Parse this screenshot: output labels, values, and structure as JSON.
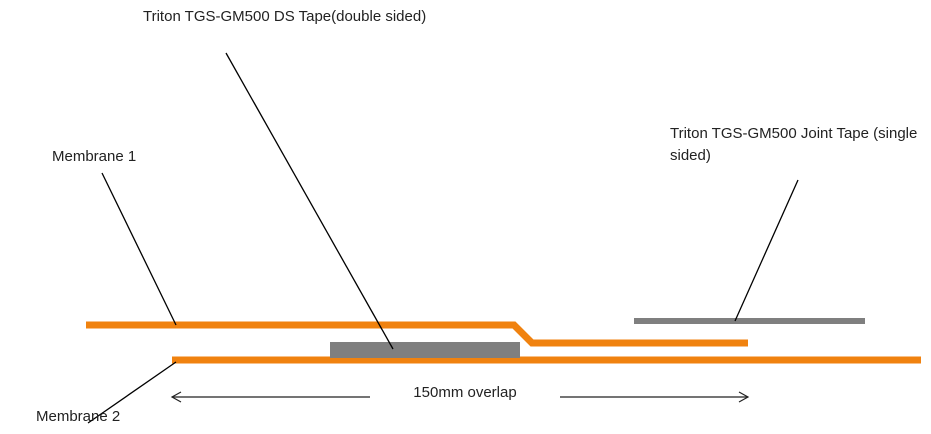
{
  "labels": {
    "ds_tape": "Triton TGS-GM500 DS Tape(double sided)",
    "joint_tape": "Triton TGS-GM500 Joint Tape (single sided)",
    "membrane_1": "Membrane 1",
    "membrane_2": "Membrane 2",
    "overlap": "150mm overlap"
  },
  "colors": {
    "membrane": "#f0820f",
    "tape": "#7f7f7f",
    "leader": "#000000",
    "dimension": "#222222"
  }
}
